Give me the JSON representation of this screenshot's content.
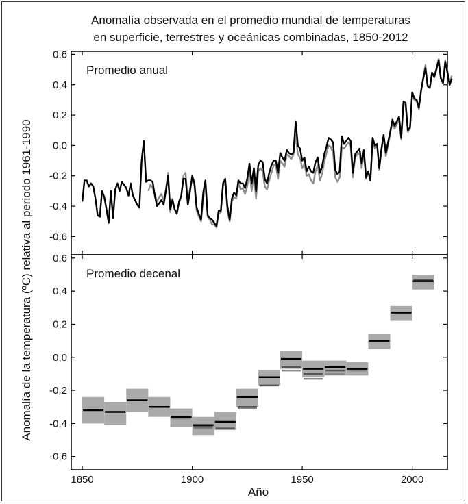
{
  "title": {
    "line1": "Anomalía observada en el promedio mundial de temperaturas",
    "line2": "en superficie, terrestres y oceánicas combinadas, 1850-2012"
  },
  "xlabel": "Año",
  "ylabel": "Anomalía de la temperatura (ºC) relativa al periodo 1961-1990",
  "colors": {
    "black_series": "#000000",
    "gray_series": "#8c8c8c",
    "uncertainty_band": "#aaaaaa",
    "axis": "#000000"
  },
  "chart_data": [
    {
      "type": "line",
      "panel": "Promedio anual",
      "xlim": [
        1845,
        2016
      ],
      "ylim": [
        -0.72,
        0.62
      ],
      "x_ticks": [
        1850,
        1900,
        1950,
        2000
      ],
      "x_tick_labels": [
        "1850",
        "1900",
        "1950",
        "2000"
      ],
      "y_ticks": [
        -0.6,
        -0.4,
        -0.2,
        0.0,
        0.2,
        0.4,
        0.6
      ],
      "y_tick_labels": [
        "-0,6",
        "-0,4",
        "-0,2",
        "0,0",
        "0,2",
        "0,4",
        "0,6"
      ],
      "series": [
        {
          "name": "annual-black",
          "color": "black",
          "start_year": 1850,
          "values": [
            -0.37,
            -0.23,
            -0.23,
            -0.27,
            -0.25,
            -0.27,
            -0.35,
            -0.46,
            -0.47,
            -0.3,
            -0.34,
            -0.42,
            -0.51,
            -0.3,
            -0.48,
            -0.29,
            -0.25,
            -0.3,
            -0.24,
            -0.26,
            -0.28,
            -0.33,
            -0.25,
            -0.33,
            -0.36,
            -0.39,
            -0.41,
            -0.1,
            0.03,
            -0.24,
            -0.23,
            -0.23,
            -0.24,
            -0.33,
            -0.4,
            -0.38,
            -0.36,
            -0.39,
            -0.3,
            -0.2,
            -0.42,
            -0.36,
            -0.42,
            -0.45,
            -0.37,
            -0.33,
            -0.22,
            -0.22,
            -0.39,
            -0.3,
            -0.2,
            -0.25,
            -0.41,
            -0.45,
            -0.49,
            -0.31,
            -0.23,
            -0.46,
            -0.48,
            -0.49,
            -0.51,
            -0.53,
            -0.43,
            -0.43,
            -0.25,
            -0.22,
            -0.4,
            -0.49,
            -0.35,
            -0.31,
            -0.33,
            -0.23,
            -0.25,
            -0.25,
            -0.28,
            -0.22,
            -0.12,
            -0.25,
            -0.15,
            -0.3,
            -0.13,
            -0.1,
            -0.11,
            -0.22,
            -0.25,
            -0.18,
            -0.13,
            -0.1,
            -0.1,
            -0.18,
            -0.05,
            -0.08,
            -0.1,
            -0.03,
            -0.05,
            -0.06,
            -0.05,
            0.16,
            0.0,
            -0.02,
            -0.1,
            -0.08,
            -0.17,
            -0.14,
            -0.17,
            -0.18,
            -0.11,
            -0.08,
            -0.18,
            -0.14,
            -0.06,
            -0.01,
            0.05,
            0.04,
            0.02,
            -0.16,
            -0.19,
            -0.17,
            0.06,
            0.01,
            0.03,
            0.05,
            0.03,
            -0.18,
            -0.06,
            -0.04,
            -0.02,
            -0.12,
            -0.03,
            -0.21,
            -0.17,
            -0.23,
            0.05,
            0.0,
            0.01,
            -0.15,
            -0.02,
            0.07,
            -0.05,
            0.02,
            0.09,
            0.17,
            0.13,
            0.16,
            0.19,
            0.05,
            0.29,
            0.28,
            0.1,
            0.12,
            0.35,
            0.31,
            0.3,
            0.25,
            0.36,
            0.44,
            0.51,
            0.39,
            0.38,
            0.48,
            0.45,
            0.5,
            0.56,
            0.44,
            0.41,
            0.55,
            0.48,
            0.4,
            0.44
          ]
        },
        {
          "name": "annual-gray",
          "color": "gray",
          "start_year": 1880,
          "values": [
            -0.3,
            -0.26,
            -0.28,
            -0.32,
            -0.37,
            -0.34,
            -0.32,
            -0.36,
            -0.29,
            -0.18,
            -0.44,
            -0.35,
            -0.42,
            -0.44,
            -0.38,
            -0.34,
            -0.2,
            -0.18,
            -0.39,
            -0.28,
            -0.22,
            -0.27,
            -0.43,
            -0.47,
            -0.5,
            -0.35,
            -0.26,
            -0.47,
            -0.49,
            -0.52,
            -0.52,
            -0.54,
            -0.45,
            -0.44,
            -0.27,
            -0.24,
            -0.43,
            -0.5,
            -0.37,
            -0.34,
            -0.35,
            -0.25,
            -0.29,
            -0.28,
            -0.32,
            -0.27,
            -0.17,
            -0.3,
            -0.2,
            -0.35,
            -0.17,
            -0.15,
            -0.17,
            -0.27,
            -0.29,
            -0.23,
            -0.18,
            -0.13,
            -0.13,
            -0.22,
            -0.1,
            -0.12,
            -0.14,
            -0.06,
            -0.07,
            -0.09,
            -0.06,
            0.07,
            -0.06,
            -0.08,
            -0.15,
            -0.12,
            -0.2,
            -0.19,
            -0.23,
            -0.25,
            -0.17,
            -0.13,
            -0.23,
            -0.19,
            -0.11,
            -0.05,
            0.0,
            -0.01,
            -0.05,
            -0.21,
            -0.24,
            -0.21,
            -0.01,
            -0.02,
            0.0,
            0.02,
            0.0,
            -0.21,
            -0.08,
            -0.06,
            -0.05,
            -0.15,
            -0.05,
            -0.22,
            -0.18,
            -0.23,
            0.04,
            -0.02,
            0.0,
            -0.16,
            -0.03,
            0.05,
            -0.07,
            0.0,
            0.08,
            0.15,
            0.11,
            0.14,
            0.17,
            0.04,
            0.28,
            0.26,
            0.09,
            0.11,
            0.34,
            0.3,
            0.29,
            0.24,
            0.36,
            0.45,
            0.53,
            0.4,
            0.38,
            0.48,
            0.46,
            0.51,
            0.57,
            0.45,
            0.42,
            0.56,
            0.49,
            0.42,
            0.46
          ]
        }
      ]
    },
    {
      "type": "decadal-bands",
      "panel": "Promedio decenal",
      "xlim": [
        1845,
        2016
      ],
      "ylim": [
        -0.68,
        0.62
      ],
      "x_ticks": [
        1850,
        1900,
        1950,
        2000
      ],
      "x_tick_labels": [
        "1850",
        "1900",
        "1950",
        "2000"
      ],
      "y_ticks": [
        -0.6,
        -0.4,
        -0.2,
        0.0,
        0.2,
        0.4,
        0.6
      ],
      "y_tick_labels": [
        "-0,6",
        "-0,4",
        "-0,2",
        "0,0",
        "0,2",
        "0,4",
        "0,6"
      ],
      "decades": [
        {
          "start": 1850,
          "end": 1860,
          "low": -0.4,
          "high": -0.24,
          "black": -0.32,
          "dark": null,
          "gray": null
        },
        {
          "start": 1860,
          "end": 1870,
          "low": -0.41,
          "high": -0.27,
          "black": -0.33,
          "dark": null,
          "gray": null
        },
        {
          "start": 1870,
          "end": 1880,
          "low": -0.33,
          "high": -0.19,
          "black": -0.26,
          "dark": null,
          "gray": null
        },
        {
          "start": 1880,
          "end": 1890,
          "low": -0.36,
          "high": -0.24,
          "black": -0.3,
          "dark": -0.3,
          "gray": -0.3
        },
        {
          "start": 1890,
          "end": 1900,
          "low": -0.42,
          "high": -0.31,
          "black": -0.36,
          "dark": -0.36,
          "gray": -0.37
        },
        {
          "start": 1900,
          "end": 1910,
          "low": -0.47,
          "high": -0.36,
          "black": -0.41,
          "dark": -0.42,
          "gray": -0.43
        },
        {
          "start": 1910,
          "end": 1920,
          "low": -0.44,
          "high": -0.33,
          "black": -0.39,
          "dark": -0.43,
          "gray": -0.43
        },
        {
          "start": 1920,
          "end": 1930,
          "low": -0.3,
          "high": -0.19,
          "black": -0.24,
          "dark": -0.3,
          "gray": -0.31
        },
        {
          "start": 1930,
          "end": 1940,
          "low": -0.17,
          "high": -0.08,
          "black": -0.12,
          "dark": -0.17,
          "gray": -0.17
        },
        {
          "start": 1940,
          "end": 1950,
          "low": -0.07,
          "high": 0.04,
          "black": -0.01,
          "dark": -0.06,
          "gray": -0.08
        },
        {
          "start": 1950,
          "end": 1960,
          "low": -0.12,
          "high": -0.02,
          "black": -0.07,
          "dark": -0.1,
          "gray": -0.13
        },
        {
          "start": 1960,
          "end": 1970,
          "low": -0.11,
          "high": -0.02,
          "black": -0.06,
          "dark": -0.08,
          "gray": -0.1
        },
        {
          "start": 1970,
          "end": 1980,
          "low": -0.11,
          "high": -0.03,
          "black": -0.07,
          "dark": -0.07,
          "gray": -0.08
        },
        {
          "start": 1980,
          "end": 1990,
          "low": 0.05,
          "high": 0.14,
          "black": 0.1,
          "dark": 0.1,
          "gray": 0.1
        },
        {
          "start": 1990,
          "end": 2000,
          "low": 0.22,
          "high": 0.31,
          "black": 0.27,
          "dark": 0.27,
          "gray": 0.27
        },
        {
          "start": 2000,
          "end": 2010,
          "low": 0.41,
          "high": 0.5,
          "black": 0.46,
          "dark": 0.47,
          "gray": 0.47
        }
      ]
    }
  ]
}
